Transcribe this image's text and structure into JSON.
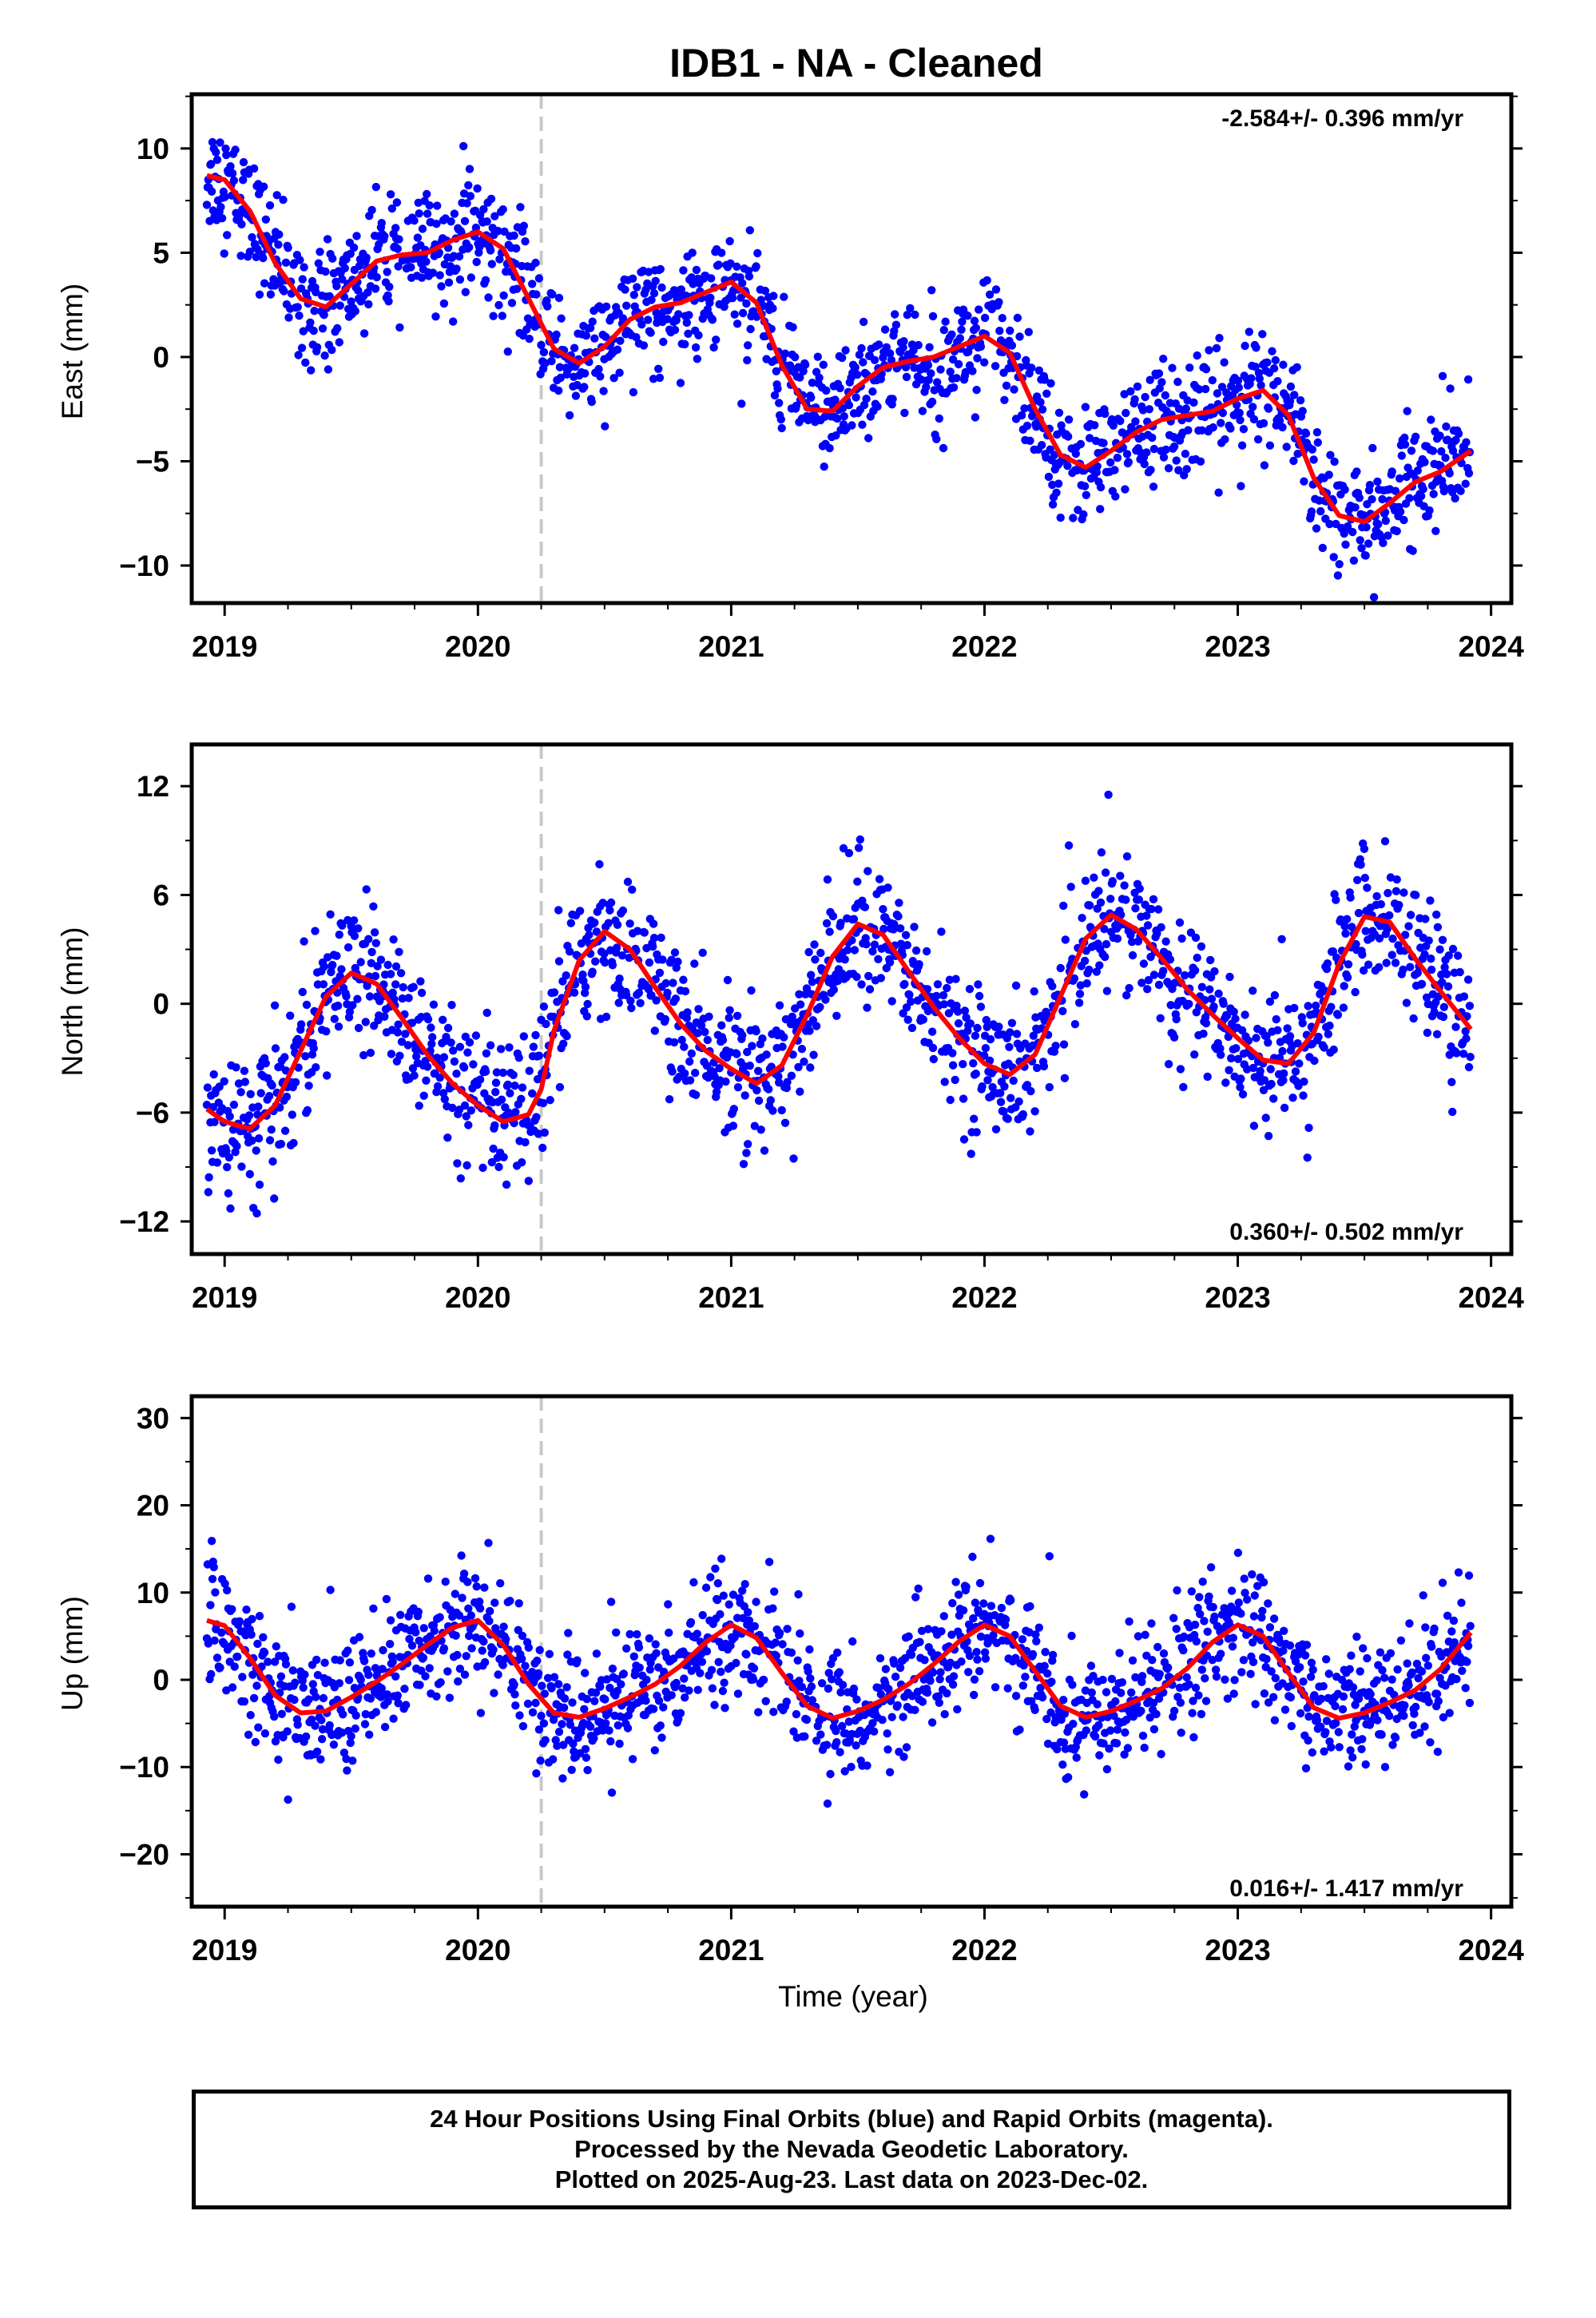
{
  "title": "IDB1  - NA - Cleaned",
  "xlabel": "Time (year)",
  "footer": {
    "line1": "24 Hour Positions Using Final Orbits (blue) and Rapid Orbits (magenta).",
    "line2": "Processed by the Nevada Geodetic Laboratory.",
    "line3": "Plotted on 2025-Aug-23. Last data on 2023-Dec-02."
  },
  "colors": {
    "points": "#0000ff",
    "fit": "#ff0000",
    "break_line": "#c8c8c8",
    "axes": "#000000"
  },
  "chart_data": [
    {
      "type": "scatter",
      "component": "East",
      "ylabel": "East (mm)",
      "xlim": [
        2018.87,
        2024.08
      ],
      "ylim": [
        -11.8,
        12.6
      ],
      "yticks": [
        -10,
        -5,
        0,
        5,
        10
      ],
      "yticklabels": [
        "−10",
        "−5",
        "0",
        "5",
        "10"
      ],
      "xticks": [
        2019,
        2020,
        2021,
        2022,
        2023,
        2024
      ],
      "xticklabels": [
        "2019",
        "2020",
        "2021",
        "2022",
        "2023",
        "2024"
      ],
      "rate_text": "-2.584+/- 0.396 mm/yr",
      "rate_position": "top-right",
      "break_x": 2020.25,
      "data_start": 2018.93,
      "data_end": 2023.92,
      "fit_curve": {
        "x": [
          2018.93,
          2019.0,
          2019.1,
          2019.2,
          2019.3,
          2019.4,
          2019.5,
          2019.6,
          2019.7,
          2019.8,
          2019.9,
          2020.0,
          2020.1,
          2020.2,
          2020.3,
          2020.4,
          2020.5,
          2020.6,
          2020.7,
          2020.8,
          2020.9,
          2021.0,
          2021.1,
          2021.2,
          2021.3,
          2021.4,
          2021.5,
          2021.6,
          2021.7,
          2021.8,
          2021.9,
          2022.0,
          2022.1,
          2022.2,
          2022.3,
          2022.4,
          2022.5,
          2022.6,
          2022.7,
          2022.8,
          2022.9,
          2023.0,
          2023.1,
          2023.2,
          2023.3,
          2023.4,
          2023.5,
          2023.6,
          2023.7,
          2023.8,
          2023.92
        ],
        "y": [
          8.7,
          8.5,
          7.0,
          4.5,
          2.8,
          2.4,
          3.5,
          4.6,
          4.9,
          5.0,
          5.6,
          6.0,
          5.2,
          2.8,
          0.4,
          -0.3,
          0.5,
          1.8,
          2.4,
          2.6,
          3.1,
          3.6,
          2.6,
          -0.4,
          -2.5,
          -2.6,
          -1.4,
          -0.5,
          -0.2,
          0.0,
          0.5,
          1.0,
          0.2,
          -2.5,
          -4.7,
          -5.3,
          -4.5,
          -3.6,
          -3.0,
          -2.8,
          -2.6,
          -2.0,
          -1.6,
          -2.8,
          -5.8,
          -7.6,
          -7.9,
          -7.0,
          -6.0,
          -5.5,
          -4.5
        ]
      }
    },
    {
      "type": "scatter",
      "component": "North",
      "ylabel": "North (mm)",
      "xlim": [
        2018.87,
        2024.08
      ],
      "ylim": [
        -13.8,
        14.3
      ],
      "yticks": [
        -12,
        -6,
        0,
        6,
        12
      ],
      "yticklabels": [
        "−12",
        "−6",
        "0",
        "6",
        "12"
      ],
      "xticks": [
        2019,
        2020,
        2021,
        2022,
        2023,
        2024
      ],
      "xticklabels": [
        "2019",
        "2020",
        "2021",
        "2022",
        "2023",
        "2024"
      ],
      "rate_text": "0.360+/- 0.502 mm/yr",
      "rate_position": "bottom-right",
      "break_x": 2020.25,
      "data_start": 2018.93,
      "data_end": 2023.92,
      "fit_curve": {
        "x": [
          2018.93,
          2019.0,
          2019.1,
          2019.2,
          2019.3,
          2019.4,
          2019.5,
          2019.6,
          2019.7,
          2019.8,
          2019.9,
          2020.0,
          2020.1,
          2020.2,
          2020.25,
          2020.3,
          2020.4,
          2020.5,
          2020.6,
          2020.7,
          2020.8,
          2020.9,
          2021.0,
          2021.1,
          2021.2,
          2021.3,
          2021.4,
          2021.5,
          2021.6,
          2021.7,
          2021.8,
          2021.9,
          2022.0,
          2022.1,
          2022.2,
          2022.3,
          2022.4,
          2022.5,
          2022.6,
          2022.7,
          2022.8,
          2022.9,
          2023.0,
          2023.1,
          2023.2,
          2023.3,
          2023.4,
          2023.5,
          2023.6,
          2023.7,
          2023.8,
          2023.92
        ],
        "y": [
          -5.8,
          -6.5,
          -6.9,
          -5.6,
          -2.6,
          0.4,
          1.7,
          1.1,
          -0.8,
          -2.8,
          -4.4,
          -5.6,
          -6.5,
          -6.1,
          -4.7,
          -1.5,
          2.4,
          4.0,
          3.0,
          0.9,
          -1.1,
          -2.6,
          -3.6,
          -4.4,
          -3.4,
          -0.6,
          2.6,
          4.4,
          3.8,
          1.8,
          -0.2,
          -1.9,
          -3.3,
          -3.9,
          -2.8,
          0.4,
          3.6,
          4.9,
          4.1,
          2.5,
          0.8,
          -0.6,
          -1.9,
          -3.1,
          -3.3,
          -1.6,
          2.2,
          4.8,
          4.5,
          2.5,
          0.7,
          -1.4
        ]
      }
    },
    {
      "type": "scatter",
      "component": "Up",
      "ylabel": "Up (mm)",
      "xlim": [
        2018.87,
        2024.08
      ],
      "ylim": [
        -26.0,
        32.5
      ],
      "yticks": [
        -20,
        -10,
        0,
        10,
        20,
        30
      ],
      "yticklabels": [
        "−20",
        "−10",
        "0",
        "10",
        "20",
        "30"
      ],
      "xticks": [
        2019,
        2020,
        2021,
        2022,
        2023,
        2024
      ],
      "xticklabels": [
        "2019",
        "2020",
        "2021",
        "2022",
        "2023",
        "2024"
      ],
      "rate_text": "0.016+/- 1.417 mm/yr",
      "rate_position": "bottom-right",
      "break_x": 2020.25,
      "data_start": 2018.93,
      "data_end": 2023.92,
      "fit_curve": {
        "x": [
          2018.93,
          2019.0,
          2019.1,
          2019.2,
          2019.3,
          2019.4,
          2019.5,
          2019.6,
          2019.7,
          2019.8,
          2019.9,
          2020.0,
          2020.1,
          2020.2,
          2020.3,
          2020.4,
          2020.5,
          2020.6,
          2020.7,
          2020.8,
          2020.9,
          2021.0,
          2021.1,
          2021.2,
          2021.3,
          2021.4,
          2021.5,
          2021.6,
          2021.7,
          2021.8,
          2021.9,
          2022.0,
          2022.1,
          2022.2,
          2022.3,
          2022.4,
          2022.5,
          2022.6,
          2022.7,
          2022.8,
          2022.9,
          2023.0,
          2023.1,
          2023.2,
          2023.3,
          2023.4,
          2023.5,
          2023.6,
          2023.7,
          2023.8,
          2023.92
        ],
        "y": [
          6.8,
          6.2,
          2.5,
          -1.8,
          -3.8,
          -3.6,
          -2.0,
          -0.2,
          1.8,
          4.0,
          6.0,
          6.8,
          4.0,
          -0.5,
          -3.8,
          -4.3,
          -3.3,
          -2.0,
          -0.5,
          1.6,
          4.3,
          6.3,
          4.8,
          0.8,
          -3.0,
          -4.4,
          -3.6,
          -2.3,
          -0.5,
          1.8,
          4.4,
          6.3,
          5.0,
          1.0,
          -3.0,
          -4.3,
          -3.6,
          -2.4,
          -1.0,
          1.3,
          4.3,
          6.3,
          5.0,
          0.8,
          -3.2,
          -4.4,
          -3.8,
          -2.6,
          -1.2,
          1.2,
          5.4
        ]
      }
    }
  ]
}
